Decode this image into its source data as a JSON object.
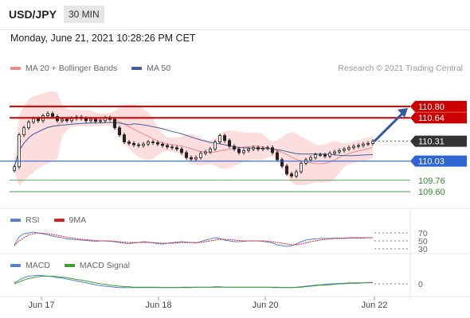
{
  "header": {
    "pair": "USD/JPY",
    "timeframe": "30 MIN"
  },
  "datetime": "Monday, June 21, 2021 10:28:26 PM CET",
  "legend": [
    {
      "label": "MA 20 + Bollinger Bands",
      "color": "#f08a8a"
    },
    {
      "label": "MA 50",
      "color": "#3f5fa0"
    }
  ],
  "credit": "Research © 2021 Trading Central",
  "rsi_legend": [
    {
      "label": "RSI",
      "color": "#5a7fcf"
    },
    {
      "label": "9MA",
      "color": "#d92020"
    }
  ],
  "macd_legend": [
    {
      "label": "MACD",
      "color": "#5a7fcf"
    },
    {
      "label": "MACD Signal",
      "color": "#3aa02a"
    }
  ],
  "chart_data": {
    "type": "candlestick",
    "x_ticks": [
      "Jun 17",
      "Jun 18",
      "Jun 20",
      "Jun 22"
    ],
    "price_levels": [
      {
        "value": 110.8,
        "label": "110.80",
        "role": "resistance",
        "color": "#cc0000"
      },
      {
        "value": 110.64,
        "label": "110.64",
        "role": "resistance",
        "color": "#cc0000"
      },
      {
        "value": 110.31,
        "label": "110.31",
        "role": "last",
        "color": "#333333"
      },
      {
        "value": 110.03,
        "label": "110.03",
        "role": "pivot",
        "color": "#2f64d4"
      },
      {
        "value": 109.76,
        "label": "109.76",
        "role": "support",
        "color": "#2e8b2e"
      },
      {
        "value": 109.6,
        "label": "109.60",
        "role": "support",
        "color": "#2e8b2e"
      }
    ],
    "close_series": [
      109.95,
      110.4,
      110.5,
      110.58,
      110.63,
      110.6,
      110.67,
      110.7,
      110.66,
      110.6,
      110.62,
      110.6,
      110.63,
      110.65,
      110.63,
      110.6,
      110.62,
      110.59,
      110.6,
      110.64,
      110.62,
      110.5,
      110.4,
      110.3,
      110.28,
      110.26,
      110.25,
      110.27,
      110.3,
      110.29,
      110.27,
      110.25,
      110.23,
      110.22,
      110.2,
      110.15,
      110.08,
      110.06,
      110.08,
      110.14,
      110.16,
      110.2,
      110.3,
      110.39,
      110.32,
      110.24,
      110.2,
      110.15,
      110.18,
      110.2,
      110.22,
      110.2,
      110.21,
      110.22,
      110.15,
      110.05,
      109.96,
      109.85,
      109.82,
      109.88,
      110.0,
      110.05,
      110.08,
      110.12,
      110.12,
      110.1,
      110.14,
      110.16,
      110.18,
      110.2,
      110.22,
      110.24,
      110.25,
      110.27,
      110.28,
      110.31
    ],
    "rsi_levels": [
      70,
      50,
      30
    ],
    "macd_levels": [
      0
    ],
    "rsi_series": [
      40,
      60,
      68,
      70,
      72,
      70,
      68,
      65,
      62,
      60,
      58,
      55,
      54,
      53,
      52,
      51,
      50,
      49,
      50,
      50,
      49,
      48,
      46,
      44,
      43,
      45,
      46,
      48,
      47,
      45,
      43,
      42,
      44,
      46,
      47,
      48,
      47,
      46,
      45,
      48,
      52,
      55,
      58,
      56,
      52,
      50,
      48,
      48,
      49,
      50,
      50,
      50,
      49,
      47,
      45,
      40,
      38,
      36,
      38,
      42,
      48,
      52,
      54,
      55,
      56,
      56,
      56,
      57,
      57,
      57,
      58,
      58,
      58,
      58,
      58,
      58
    ],
    "rsi_ma_series": [
      38,
      50,
      58,
      65,
      68,
      70,
      69,
      68,
      66,
      64,
      62,
      59,
      57,
      56,
      54,
      53,
      52,
      51,
      50,
      50,
      50,
      49,
      48,
      47,
      46,
      46,
      46,
      46,
      46,
      46,
      45,
      44,
      44,
      44,
      45,
      46,
      46,
      46,
      46,
      46,
      48,
      50,
      52,
      54,
      54,
      53,
      52,
      51,
      50,
      50,
      50,
      50,
      50,
      49,
      48,
      46,
      44,
      42,
      40,
      40,
      42,
      45,
      48,
      50,
      52,
      54,
      55,
      56,
      56,
      56,
      57,
      57,
      57,
      57,
      58,
      58
    ],
    "macd_series": [
      0.02,
      0.08,
      0.13,
      0.16,
      0.17,
      0.18,
      0.17,
      0.16,
      0.15,
      0.13,
      0.12,
      0.1,
      0.08,
      0.06,
      0.04,
      0.02,
      0.0,
      -0.02,
      -0.04,
      -0.05,
      -0.06,
      -0.07,
      -0.08,
      -0.08,
      -0.08,
      -0.08,
      -0.08,
      -0.08,
      -0.08,
      -0.08,
      -0.08,
      -0.08,
      -0.08,
      -0.08,
      -0.08,
      -0.07,
      -0.07,
      -0.07,
      -0.07,
      -0.07,
      -0.07,
      -0.07,
      -0.06,
      -0.06,
      -0.07,
      -0.07,
      -0.07,
      -0.07,
      -0.07,
      -0.07,
      -0.07,
      -0.07,
      -0.07,
      -0.07,
      -0.08,
      -0.08,
      -0.08,
      -0.08,
      -0.08,
      -0.07,
      -0.06,
      -0.05,
      -0.04,
      -0.03,
      -0.02,
      -0.01,
      0.0,
      0.0,
      0.01,
      0.01,
      0.02,
      0.02,
      0.02,
      0.02,
      0.03,
      0.03
    ],
    "macd_signal_series": [
      0.0,
      0.04,
      0.08,
      0.11,
      0.13,
      0.15,
      0.16,
      0.16,
      0.16,
      0.15,
      0.14,
      0.13,
      0.11,
      0.09,
      0.08,
      0.06,
      0.04,
      0.02,
      0.0,
      -0.01,
      -0.03,
      -0.04,
      -0.05,
      -0.06,
      -0.06,
      -0.07,
      -0.07,
      -0.07,
      -0.07,
      -0.07,
      -0.07,
      -0.08,
      -0.08,
      -0.08,
      -0.08,
      -0.08,
      -0.08,
      -0.08,
      -0.07,
      -0.07,
      -0.07,
      -0.07,
      -0.07,
      -0.07,
      -0.07,
      -0.07,
      -0.07,
      -0.07,
      -0.07,
      -0.07,
      -0.07,
      -0.07,
      -0.07,
      -0.07,
      -0.07,
      -0.07,
      -0.08,
      -0.08,
      -0.08,
      -0.08,
      -0.07,
      -0.06,
      -0.05,
      -0.04,
      -0.03,
      -0.03,
      -0.02,
      -0.01,
      0.0,
      0.0,
      0.01,
      0.01,
      0.01,
      0.02,
      0.02,
      0.02
    ],
    "forecast": {
      "from": 110.31,
      "to": 110.8,
      "direction": "up",
      "color": "#2f5aa8"
    }
  }
}
